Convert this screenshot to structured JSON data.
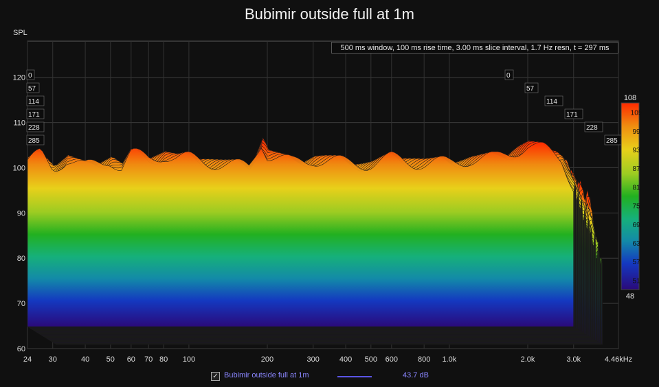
{
  "title": "Bubimir outside full at 1m",
  "y_axis_label": "SPL",
  "info_text": "500 ms window, 100 ms rise time, 3.00 ms slice interval, 1.7 Hz resn, t = 297 ms",
  "legend": {
    "checked_mark": "✓",
    "series_label": "Bubimir outside full at 1m",
    "value": "43.7 dB",
    "line_color": "#5a55e6"
  },
  "colorbar": {
    "top_label": "108",
    "bottom_label": "48",
    "ticks": [
      "105",
      "99",
      "93",
      "87",
      "81",
      "75",
      "69",
      "63",
      "57",
      "51"
    ]
  },
  "chart_data": {
    "type": "area",
    "subtype": "waterfall",
    "title": "Bubimir outside full at 1m",
    "ylabel": "SPL",
    "xlabel": "",
    "x_scale": "log",
    "x_range": [
      24,
      4460
    ],
    "y_range": [
      60,
      128
    ],
    "y_ticks": [
      60,
      70,
      80,
      90,
      100,
      110,
      120
    ],
    "x_tick_labels": [
      "24",
      "30",
      "40",
      "50",
      "60",
      "70",
      "80",
      "100",
      "200",
      "300",
      "400",
      "500",
      "600",
      "800",
      "1.0k",
      "2.0k",
      "3.0k",
      "4.46kHz"
    ],
    "time_slice_labels_ms": [
      "0",
      "57",
      "114",
      "171",
      "228",
      "285"
    ],
    "color_scale": {
      "min": 48,
      "max": 108
    },
    "front_slice_envelope": {
      "freq_hz": [
        24,
        27,
        30,
        34,
        40,
        45,
        50,
        55,
        60,
        70,
        80,
        90,
        100,
        130,
        170,
        190,
        200,
        250,
        300,
        400,
        500,
        600,
        800,
        1000,
        1200,
        1500,
        2000,
        2300,
        2700,
        3000
      ],
      "spl_db": [
        101,
        103,
        100,
        102,
        100,
        101,
        102,
        100,
        103,
        102,
        103,
        102,
        102,
        101,
        100,
        106,
        103,
        101,
        102,
        101,
        101,
        102,
        101,
        101,
        102,
        102,
        105,
        104,
        102,
        96
      ]
    },
    "slices": 100,
    "slice_interval_ms": 3.0,
    "grid": true,
    "legend_position": "bottom"
  }
}
